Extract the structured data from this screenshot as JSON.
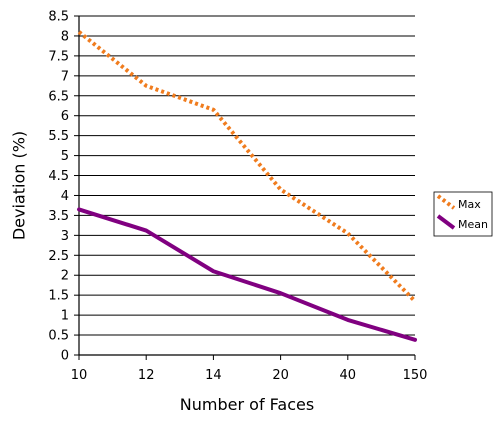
{
  "chart_data": {
    "type": "line",
    "categories": [
      "10",
      "12",
      "14",
      "20",
      "40",
      "150"
    ],
    "series": [
      {
        "name": "Max",
        "values": [
          8.1,
          6.75,
          6.15,
          4.15,
          3.05,
          1.35
        ],
        "color": "#f07c1e",
        "style": "dotted"
      },
      {
        "name": "Mean",
        "values": [
          3.65,
          3.12,
          2.1,
          1.55,
          0.88,
          0.38
        ],
        "color": "#800080",
        "style": "solid"
      }
    ],
    "xlabel": "Number of Faces",
    "ylabel": "Deviation (%)",
    "ylim": [
      0,
      8.5
    ],
    "yticks": [
      "0",
      "0.5",
      "1",
      "1.5",
      "2",
      "2.5",
      "3",
      "3.5",
      "4",
      "4.5",
      "5",
      "5.5",
      "6",
      "6.5",
      "7",
      "7.5",
      "8",
      "8.5"
    ],
    "grid": "horizontal",
    "legend_position": "right"
  }
}
